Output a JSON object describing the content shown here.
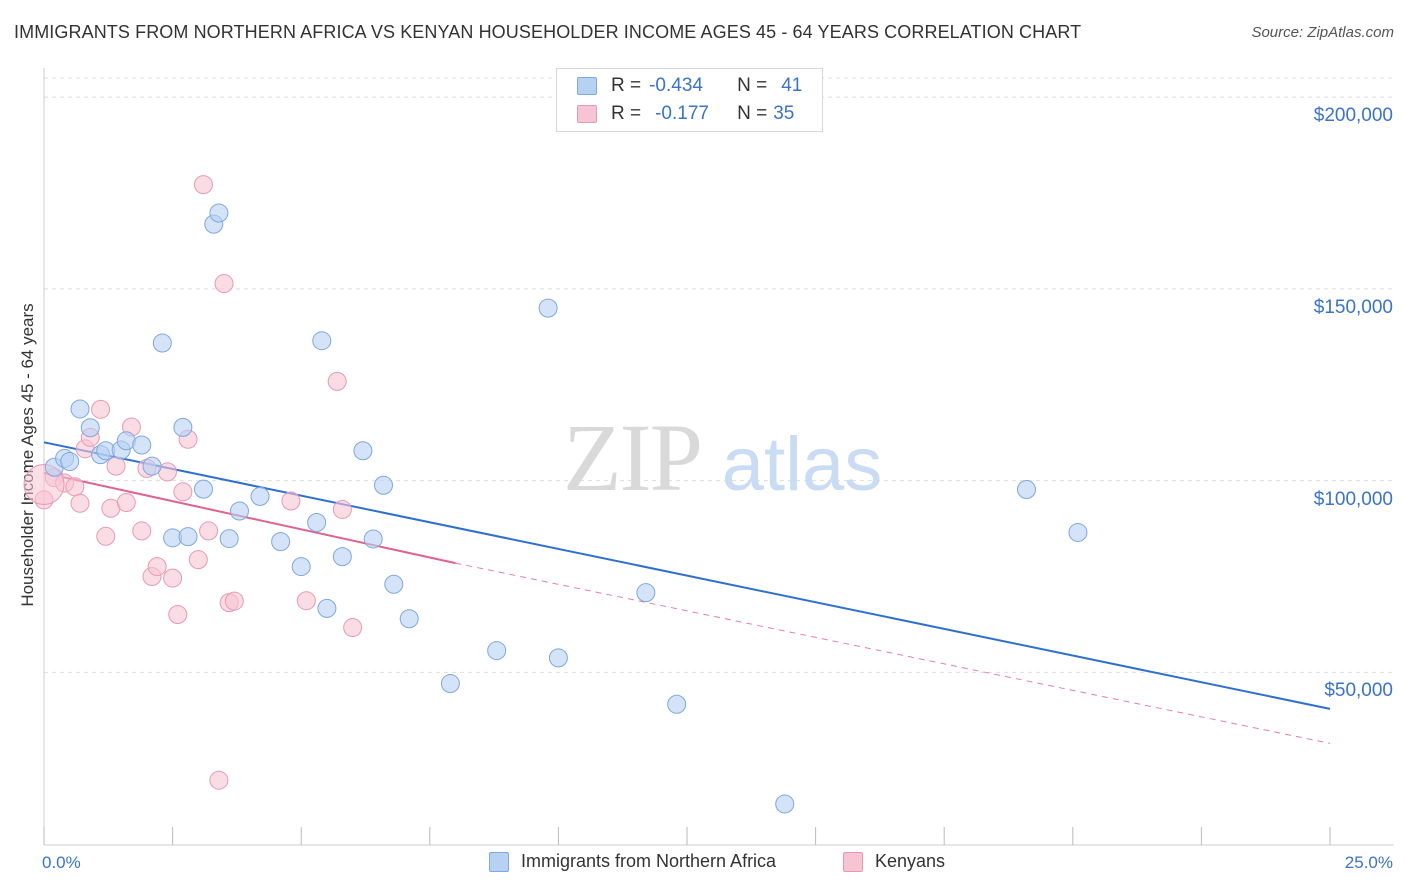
{
  "title": "IMMIGRANTS FROM NORTHERN AFRICA VS KENYAN HOUSEHOLDER INCOME AGES 45 - 64 YEARS CORRELATION CHART",
  "source": "Source: ZipAtlas.com",
  "watermark": {
    "zip": "ZIP",
    "atlas": "atlas"
  },
  "legend_top": {
    "rows": [
      {
        "r_label": "R =",
        "r_value": "-0.434",
        "n_label": "N =",
        "n_value": "41"
      },
      {
        "r_label": "R =",
        "r_value": "-0.177",
        "n_label": "N =",
        "n_value": "35"
      }
    ]
  },
  "legend_bottom": {
    "items": [
      {
        "label": "Immigrants from Northern Africa"
      },
      {
        "label": "Kenyans"
      }
    ]
  },
  "colors": {
    "blue_fill": "#b7d1f3",
    "blue_stroke": "#7ea8de",
    "blue_line": "#2f6fd0",
    "pink_fill": "#f7c4d4",
    "pink_stroke": "#e79ab4",
    "pink_line": "#e0628e",
    "axis_text": "#3a73c9",
    "grid": "#dddddd"
  },
  "chart_data": {
    "type": "scatter",
    "title": "IMMIGRANTS FROM NORTHERN AFRICA VS KENYAN HOUSEHOLDER INCOME AGES 45 - 64 YEARS CORRELATION CHART",
    "xlabel": "",
    "ylabel": "Householder Income Ages 45 - 64 years",
    "x_tick_labels": [
      "0.0%",
      "25.0%"
    ],
    "y_tick_labels": [
      "$50,000",
      "$100,000",
      "$150,000",
      "$200,000"
    ],
    "y_ticks": [
      50000,
      100000,
      150000,
      200000
    ],
    "xlim": [
      0,
      25
    ],
    "ylim": [
      5000,
      205000
    ],
    "grid": true,
    "legend_position": "top-center",
    "series": [
      {
        "name": "Immigrants from Northern Africa",
        "r": -0.434,
        "n": 41,
        "trend": {
          "x": [
            0.0,
            25.0
          ],
          "y": [
            110000,
            40500
          ],
          "style": "solid"
        },
        "points": [
          [
            0.2,
            103500
          ],
          [
            0.4,
            105800
          ],
          [
            0.5,
            105000
          ],
          [
            0.7,
            118700
          ],
          [
            0.9,
            113800
          ],
          [
            1.1,
            106800
          ],
          [
            1.2,
            107800
          ],
          [
            1.5,
            108000
          ],
          [
            1.6,
            110400
          ],
          [
            1.9,
            109300
          ],
          [
            2.1,
            103800
          ],
          [
            2.3,
            135900
          ],
          [
            2.5,
            85100
          ],
          [
            2.7,
            113900
          ],
          [
            2.8,
            85400
          ],
          [
            3.1,
            97800
          ],
          [
            3.3,
            166900
          ],
          [
            3.4,
            169800
          ],
          [
            3.6,
            84900
          ],
          [
            3.8,
            92100
          ],
          [
            4.2,
            95900
          ],
          [
            4.6,
            84100
          ],
          [
            5.0,
            77600
          ],
          [
            5.3,
            89100
          ],
          [
            5.4,
            136500
          ],
          [
            5.5,
            66700
          ],
          [
            5.8,
            80200
          ],
          [
            6.2,
            107800
          ],
          [
            6.4,
            84800
          ],
          [
            6.6,
            98800
          ],
          [
            6.8,
            73000
          ],
          [
            7.1,
            64000
          ],
          [
            7.9,
            47100
          ],
          [
            8.8,
            55700
          ],
          [
            9.8,
            145000
          ],
          [
            10.0,
            53800
          ],
          [
            11.7,
            70800
          ],
          [
            12.3,
            41700
          ],
          [
            14.4,
            15700
          ],
          [
            19.1,
            97700
          ],
          [
            20.1,
            86500
          ]
        ]
      },
      {
        "name": "Kenyans",
        "r": -0.177,
        "n": 35,
        "trend": {
          "x": [
            0.0,
            8.0
          ],
          "y": [
            102000,
            78500
          ],
          "style": "solid",
          "extended": {
            "x": [
              8.0,
              25.0
            ],
            "y": [
              78500,
              31500
            ],
            "style": "dashed"
          }
        },
        "points": [
          [
            0.0,
            95000
          ],
          [
            0.2,
            100800
          ],
          [
            0.4,
            99400
          ],
          [
            0.6,
            98400
          ],
          [
            0.7,
            94100
          ],
          [
            0.8,
            108300
          ],
          [
            0.9,
            111300
          ],
          [
            1.1,
            118600
          ],
          [
            1.2,
            85500
          ],
          [
            1.3,
            92800
          ],
          [
            1.4,
            103800
          ],
          [
            1.6,
            94300
          ],
          [
            1.7,
            114000
          ],
          [
            1.9,
            86900
          ],
          [
            2.0,
            103200
          ],
          [
            2.1,
            75000
          ],
          [
            2.2,
            77600
          ],
          [
            2.4,
            102300
          ],
          [
            2.5,
            74600
          ],
          [
            2.6,
            65100
          ],
          [
            2.7,
            97100
          ],
          [
            2.8,
            110800
          ],
          [
            3.0,
            79400
          ],
          [
            3.2,
            86900
          ],
          [
            3.1,
            177200
          ],
          [
            3.4,
            21900
          ],
          [
            3.5,
            151400
          ],
          [
            3.6,
            68200
          ],
          [
            3.7,
            68600
          ],
          [
            4.8,
            94700
          ],
          [
            5.1,
            68700
          ],
          [
            5.7,
            125900
          ],
          [
            5.8,
            92500
          ],
          [
            6.0,
            61700
          ],
          [
            0.0,
            99000
          ]
        ]
      }
    ]
  }
}
